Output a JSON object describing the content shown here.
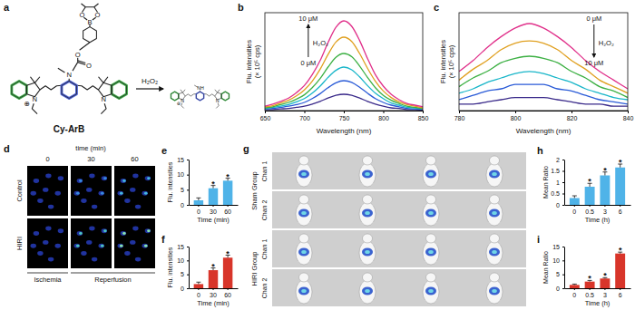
{
  "chart_data": [
    {
      "type": "line",
      "panel_label": "b",
      "x": [
        650,
        660,
        670,
        680,
        690,
        700,
        710,
        720,
        730,
        740,
        750,
        760,
        770,
        780,
        790,
        800,
        810,
        820,
        830,
        840,
        850
      ],
      "series": [
        {
          "color": "#3a2a8a",
          "values": [
            0.2,
            0.2,
            0.3,
            0.4,
            0.6,
            0.8,
            1.2,
            1.7,
            2.3,
            2.8,
            3.0,
            2.8,
            2.3,
            1.7,
            1.2,
            0.8,
            0.5,
            0.4,
            0.2,
            0.2,
            0.1
          ]
        },
        {
          "color": "#2a5bd7",
          "values": [
            0.3,
            0.4,
            0.6,
            0.8,
            1.1,
            1.5,
            2.2,
            3.1,
            4.2,
            5.1,
            5.5,
            5.2,
            4.3,
            3.2,
            2.2,
            1.5,
            1.0,
            0.7,
            0.4,
            0.3,
            0.2
          ]
        },
        {
          "color": "#19b6c9",
          "values": [
            0.4,
            0.6,
            0.8,
            1.1,
            1.6,
            2.2,
            3.2,
            4.5,
            6.1,
            7.4,
            8.0,
            7.5,
            6.2,
            4.6,
            3.2,
            2.2,
            1.4,
            1.0,
            0.6,
            0.5,
            0.3
          ]
        },
        {
          "color": "#3cb043",
          "values": [
            0.5,
            0.7,
            1.1,
            1.5,
            2.1,
            2.9,
            4.2,
            5.9,
            8.0,
            9.8,
            10.5,
            9.9,
            8.2,
            6.1,
            4.2,
            2.8,
            1.9,
            1.3,
            0.8,
            0.6,
            0.4
          ]
        },
        {
          "color": "#e0a020",
          "values": [
            0.7,
            0.9,
            1.4,
            1.9,
            2.7,
            3.8,
            5.4,
            7.6,
            10.3,
            12.6,
            13.5,
            12.7,
            10.5,
            7.8,
            5.4,
            3.6,
            2.4,
            1.6,
            1.1,
            0.8,
            0.5
          ]
        },
        {
          "color": "#e0308a",
          "values": [
            0.8,
            1.2,
            1.7,
            2.3,
            3.3,
            4.6,
            6.6,
            9.2,
            12.5,
            15.3,
            16.5,
            15.5,
            12.9,
            9.6,
            6.6,
            4.5,
            3.0,
            2.0,
            1.3,
            1.0,
            0.7
          ]
        }
      ],
      "xlim": [
        650,
        850
      ],
      "ylim": [
        0,
        18
      ],
      "xticks": [
        650,
        700,
        750,
        800,
        850
      ],
      "xlabel": "Wavelength (nm)",
      "ylabel": [
        "Flu. intensities",
        "(× 10⁵ cps)"
      ],
      "annotations": [
        "10 μM",
        "H₂O₂",
        "0 μM"
      ],
      "tick_labels": "x"
    },
    {
      "type": "line",
      "panel_label": "c",
      "x": [
        780,
        785,
        790,
        795,
        800,
        805,
        810,
        815,
        820,
        825,
        830,
        835,
        840
      ],
      "series": [
        {
          "color": "#e0308a",
          "values": [
            1.8,
            2.3,
            2.9,
            3.4,
            3.8,
            4.0,
            3.8,
            3.4,
            2.9,
            2.3,
            1.8,
            1.4,
            1.0
          ]
        },
        {
          "color": "#e0a020",
          "values": [
            1.4,
            1.9,
            2.3,
            2.8,
            3.1,
            3.2,
            3.1,
            2.8,
            2.3,
            1.9,
            1.4,
            1.1,
            0.8
          ]
        },
        {
          "color": "#3cb043",
          "values": [
            1.1,
            1.5,
            1.8,
            2.2,
            2.4,
            2.5,
            2.4,
            2.2,
            1.8,
            1.5,
            1.1,
            0.9,
            0.6
          ]
        },
        {
          "color": "#19b6c9",
          "values": [
            0.8,
            1.0,
            1.3,
            1.5,
            1.7,
            1.8,
            1.7,
            1.5,
            1.3,
            1.0,
            0.8,
            0.6,
            0.5
          ]
        },
        {
          "color": "#2a5bd7",
          "values": [
            0.5,
            0.7,
            0.9,
            1.0,
            1.2,
            1.2,
            1.2,
            1.0,
            0.9,
            0.7,
            0.5,
            0.4,
            0.3
          ]
        },
        {
          "color": "#3a2a8a",
          "values": [
            0.3,
            0.3,
            0.4,
            0.5,
            0.6,
            0.6,
            0.6,
            0.5,
            0.4,
            0.3,
            0.3,
            0.2,
            0.2
          ]
        }
      ],
      "xlim": [
        780,
        840
      ],
      "ylim": [
        0,
        4.5
      ],
      "xticks": [
        780,
        800,
        820,
        840
      ],
      "xlabel": "Wavelength (nm)",
      "ylabel": [
        "Flu. intensities",
        "(× 10⁵ cps)"
      ],
      "annotations": [
        "0 μM",
        "H₂O₂",
        "10 μM"
      ],
      "tick_labels": "x"
    },
    {
      "type": "bar",
      "panel_label": "e",
      "categories": [
        "0",
        "30",
        "60"
      ],
      "values": [
        1.5,
        5.5,
        8
      ],
      "errors": [
        0.8,
        0.9,
        0.8
      ],
      "significance": [
        null,
        "*",
        "*"
      ],
      "color": "#4fb3e8",
      "ylim": [
        0,
        15
      ],
      "yticks": [
        0,
        5,
        10,
        15
      ],
      "xlabel": "Time (min)",
      "ylabel": "Flu. intensities"
    },
    {
      "type": "bar",
      "panel_label": "f",
      "categories": [
        "0",
        "30",
        "60"
      ],
      "values": [
        1.5,
        6.5,
        11
      ],
      "errors": [
        0.7,
        0.8,
        0.9
      ],
      "significance": [
        null,
        "*",
        "*"
      ],
      "color": "#d8352a",
      "ylim": [
        0,
        15
      ],
      "yticks": [
        0,
        5,
        10,
        15
      ],
      "xlabel": "Time (min)",
      "ylabel": "Flu. intensities"
    },
    {
      "type": "bar",
      "panel_label": "h",
      "categories": [
        "0",
        "0.5",
        "3",
        "6"
      ],
      "values": [
        0.3,
        0.8,
        1.3,
        1.65
      ],
      "errors": [
        0.1,
        0.15,
        0.15,
        0.15
      ],
      "significance": [
        null,
        "*",
        "*",
        "*"
      ],
      "color": "#4fb3e8",
      "ylim": [
        0,
        2
      ],
      "yticks": [
        0,
        0.5,
        1,
        1.5,
        2
      ],
      "xlabel": "Time (h)",
      "ylabel": "Mean Ratio"
    },
    {
      "type": "bar",
      "panel_label": "i",
      "categories": [
        "0",
        "0.5",
        "3",
        "6"
      ],
      "values": [
        1.2,
        2.4,
        3.5,
        12.5
      ],
      "errors": [
        0.3,
        0.4,
        0.3,
        0.5
      ],
      "significance": [
        null,
        "*",
        "*",
        "*"
      ],
      "color": "#d8352a",
      "ylim": [
        0,
        15
      ],
      "yticks": [
        0,
        5,
        10,
        15
      ],
      "xlabel": "Time (h)",
      "ylabel": "Mean Ratio"
    }
  ],
  "panels": {
    "a": {
      "panel_label": "a",
      "probe": "Cy-ArB",
      "reagent": "H₂O₂",
      "probe_atoms": [
        "B",
        "O",
        "O",
        "O",
        "O",
        "N",
        "N",
        "N",
        "⊕"
      ],
      "product_atoms": [
        "N",
        "NH",
        "N",
        "⊕"
      ]
    },
    "d": {
      "panel_label": "d",
      "time_title": "time (min)",
      "times": [
        "0",
        "30",
        "60"
      ],
      "rows": [
        "Control",
        "HIRI"
      ],
      "phases": [
        "Ischemia",
        "Reperfusion"
      ]
    },
    "g": {
      "panel_label": "g",
      "groups": [
        "Sham Group",
        "HIRI Group"
      ],
      "channels": [
        "Chan 1",
        "Chan 2"
      ]
    }
  }
}
